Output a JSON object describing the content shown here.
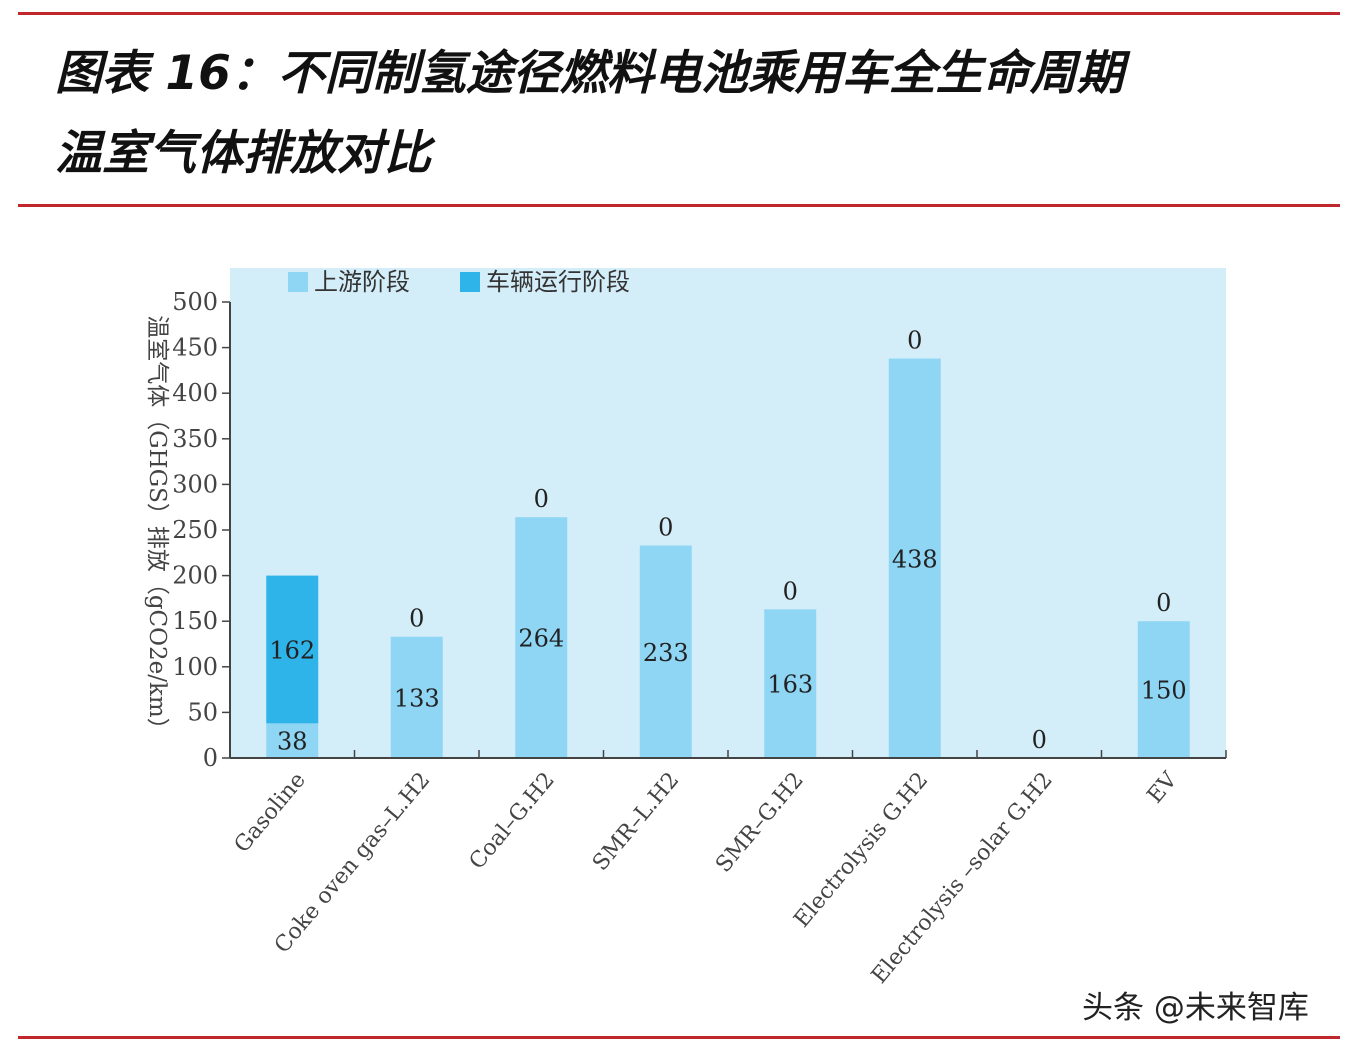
{
  "header": {
    "title_line1": "图表 16：不同制氢途径燃料电池乘用车全生命周期",
    "title_line2": "温室气体排放对比"
  },
  "watermark": "头条 @未来智库",
  "colors": {
    "rule": "#c0272d",
    "plot_bg": "#d4eef9",
    "upstream": "#8fd5f4",
    "vehicle": "#2fb4ea"
  },
  "chart_data": {
    "type": "bar",
    "stacked": true,
    "categories": [
      "Gasoline",
      "Coke oven gas–L.H2",
      "Coal–G.H2",
      "SMR–L.H2",
      "SMR–G.H2",
      "Electrolysis G.H2",
      "Electrolysis –solar G.H2",
      "EV"
    ],
    "series": [
      {
        "name": "上游阶段",
        "color": "#8fd5f4",
        "values": [
          38,
          133,
          264,
          233,
          163,
          438,
          0,
          150
        ]
      },
      {
        "name": "车辆运行阶段",
        "color": "#2fb4ea",
        "values": [
          162,
          0,
          0,
          0,
          0,
          0,
          0,
          0
        ]
      }
    ],
    "top_labels": [
      "",
      "0",
      "0",
      "0",
      "0",
      "0",
      "0",
      "0"
    ],
    "ylabel": "温室气体（GHGS）排放（gCO2e/km）",
    "ylim": [
      0,
      500
    ],
    "yticks": [
      0,
      50,
      100,
      150,
      200,
      250,
      300,
      350,
      400,
      450,
      500
    ],
    "legend_position": "top-left",
    "grid": false
  }
}
